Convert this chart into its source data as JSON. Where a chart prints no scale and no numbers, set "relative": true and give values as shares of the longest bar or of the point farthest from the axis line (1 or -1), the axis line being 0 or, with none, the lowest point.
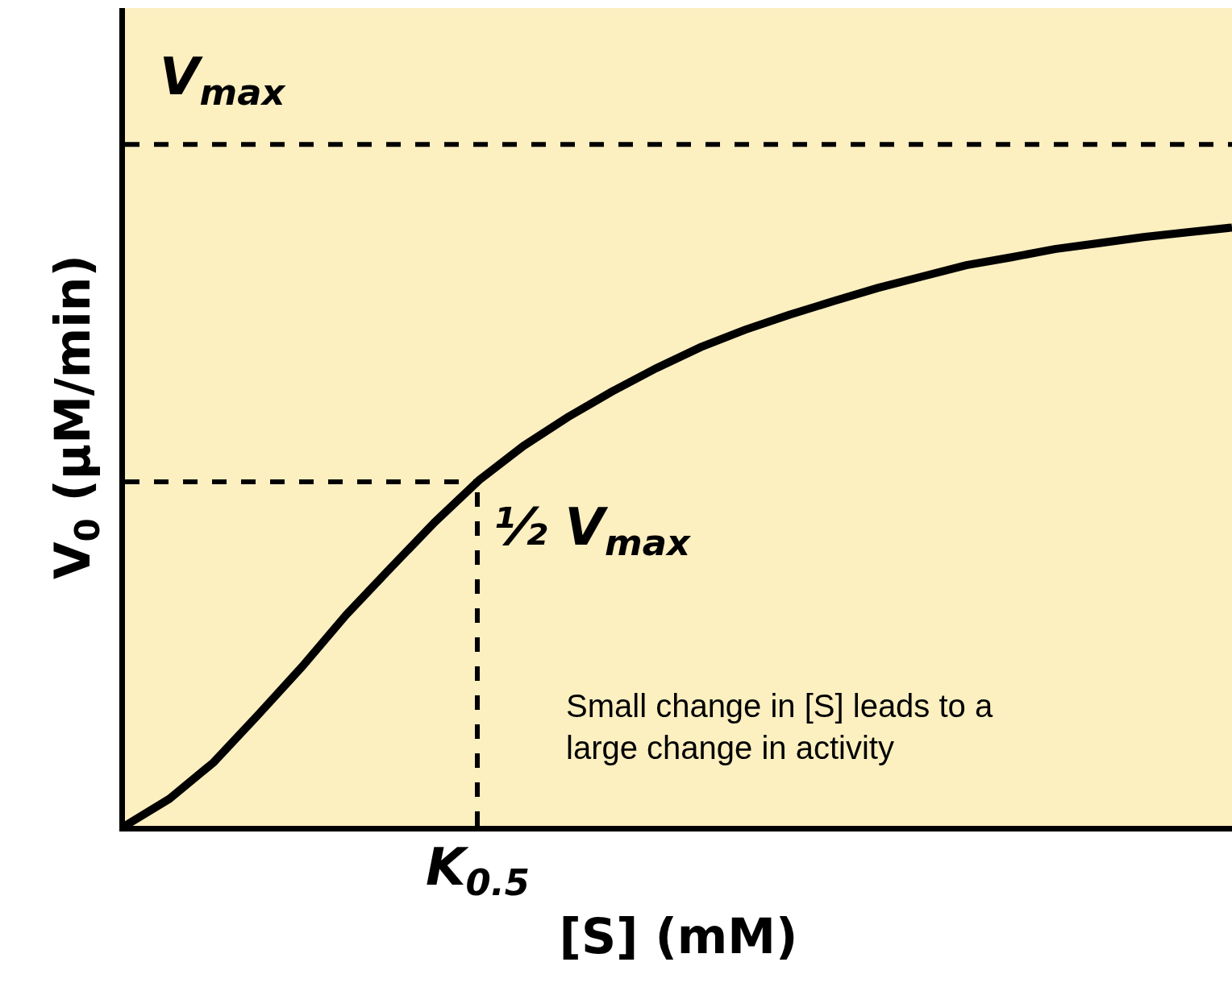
{
  "chart_data": {
    "type": "line",
    "relative": true,
    "xlabel": "[S] (mM)",
    "ylabel": "V$_{0}$ (μM/min)",
    "categories": [
      null,
      null,
      null,
      null,
      null,
      null,
      null,
      null,
      null,
      null,
      null,
      null,
      null,
      null,
      null,
      null,
      null,
      null,
      null,
      null,
      null,
      null,
      null,
      null,
      null,
      null
    ],
    "series": [
      {
        "color": "#000000",
        "values": [
          0,
          0.045,
          0.106,
          0.185,
          0.266,
          0.353,
          0.431,
          0.508,
          0.578,
          0.635,
          0.683,
          0.726,
          0.765,
          0.8,
          0.829,
          0.854,
          0.877,
          0.899,
          0.918,
          0.937,
          0.95,
          0.964,
          0.974,
          0.984,
          0.992,
          1
        ]
      }
    ],
    "ref_lines": [
      {
        "axis": "y",
        "value": 1.139,
        "label": "V$_{max}$",
        "line_style": "dashed",
        "color": "#000000"
      },
      {
        "axis": "y",
        "value": 0.575,
        "label": "½ V$_{max}$",
        "line_style": "dashed",
        "color": "#000000"
      }
    ],
    "annotations": [
      "Small change in [S] leads to a large change in activity",
      "K$_{0.5}$"
    ],
    "grid": false,
    "legend": false,
    "line_style": "solid",
    "marker": "none"
  }
}
